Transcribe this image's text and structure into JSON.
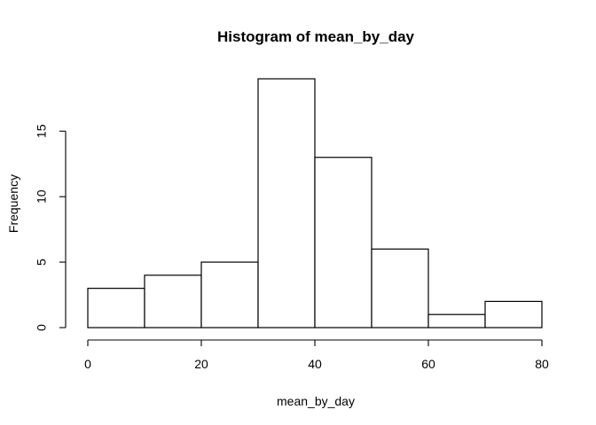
{
  "chart_data": {
    "type": "bar",
    "title": "Histogram of mean_by_day",
    "xlabel": "mean_by_day",
    "ylabel": "Frequency",
    "bins": [
      {
        "start": 0,
        "end": 10,
        "count": 3
      },
      {
        "start": 10,
        "end": 20,
        "count": 4
      },
      {
        "start": 20,
        "end": 30,
        "count": 5
      },
      {
        "start": 30,
        "end": 40,
        "count": 19
      },
      {
        "start": 40,
        "end": 50,
        "count": 13
      },
      {
        "start": 50,
        "end": 60,
        "count": 6
      },
      {
        "start": 60,
        "end": 70,
        "count": 1
      },
      {
        "start": 70,
        "end": 80,
        "count": 2
      }
    ],
    "xlim": [
      0,
      80
    ],
    "ylim": [
      0,
      19
    ],
    "x_ticks": [
      0,
      20,
      40,
      60,
      80
    ],
    "y_ticks": [
      0,
      5,
      10,
      15
    ],
    "grid": false,
    "legend": "none",
    "colors": {
      "bar_fill": "#ffffff",
      "bar_stroke": "#000000",
      "axis": "#000000"
    }
  }
}
